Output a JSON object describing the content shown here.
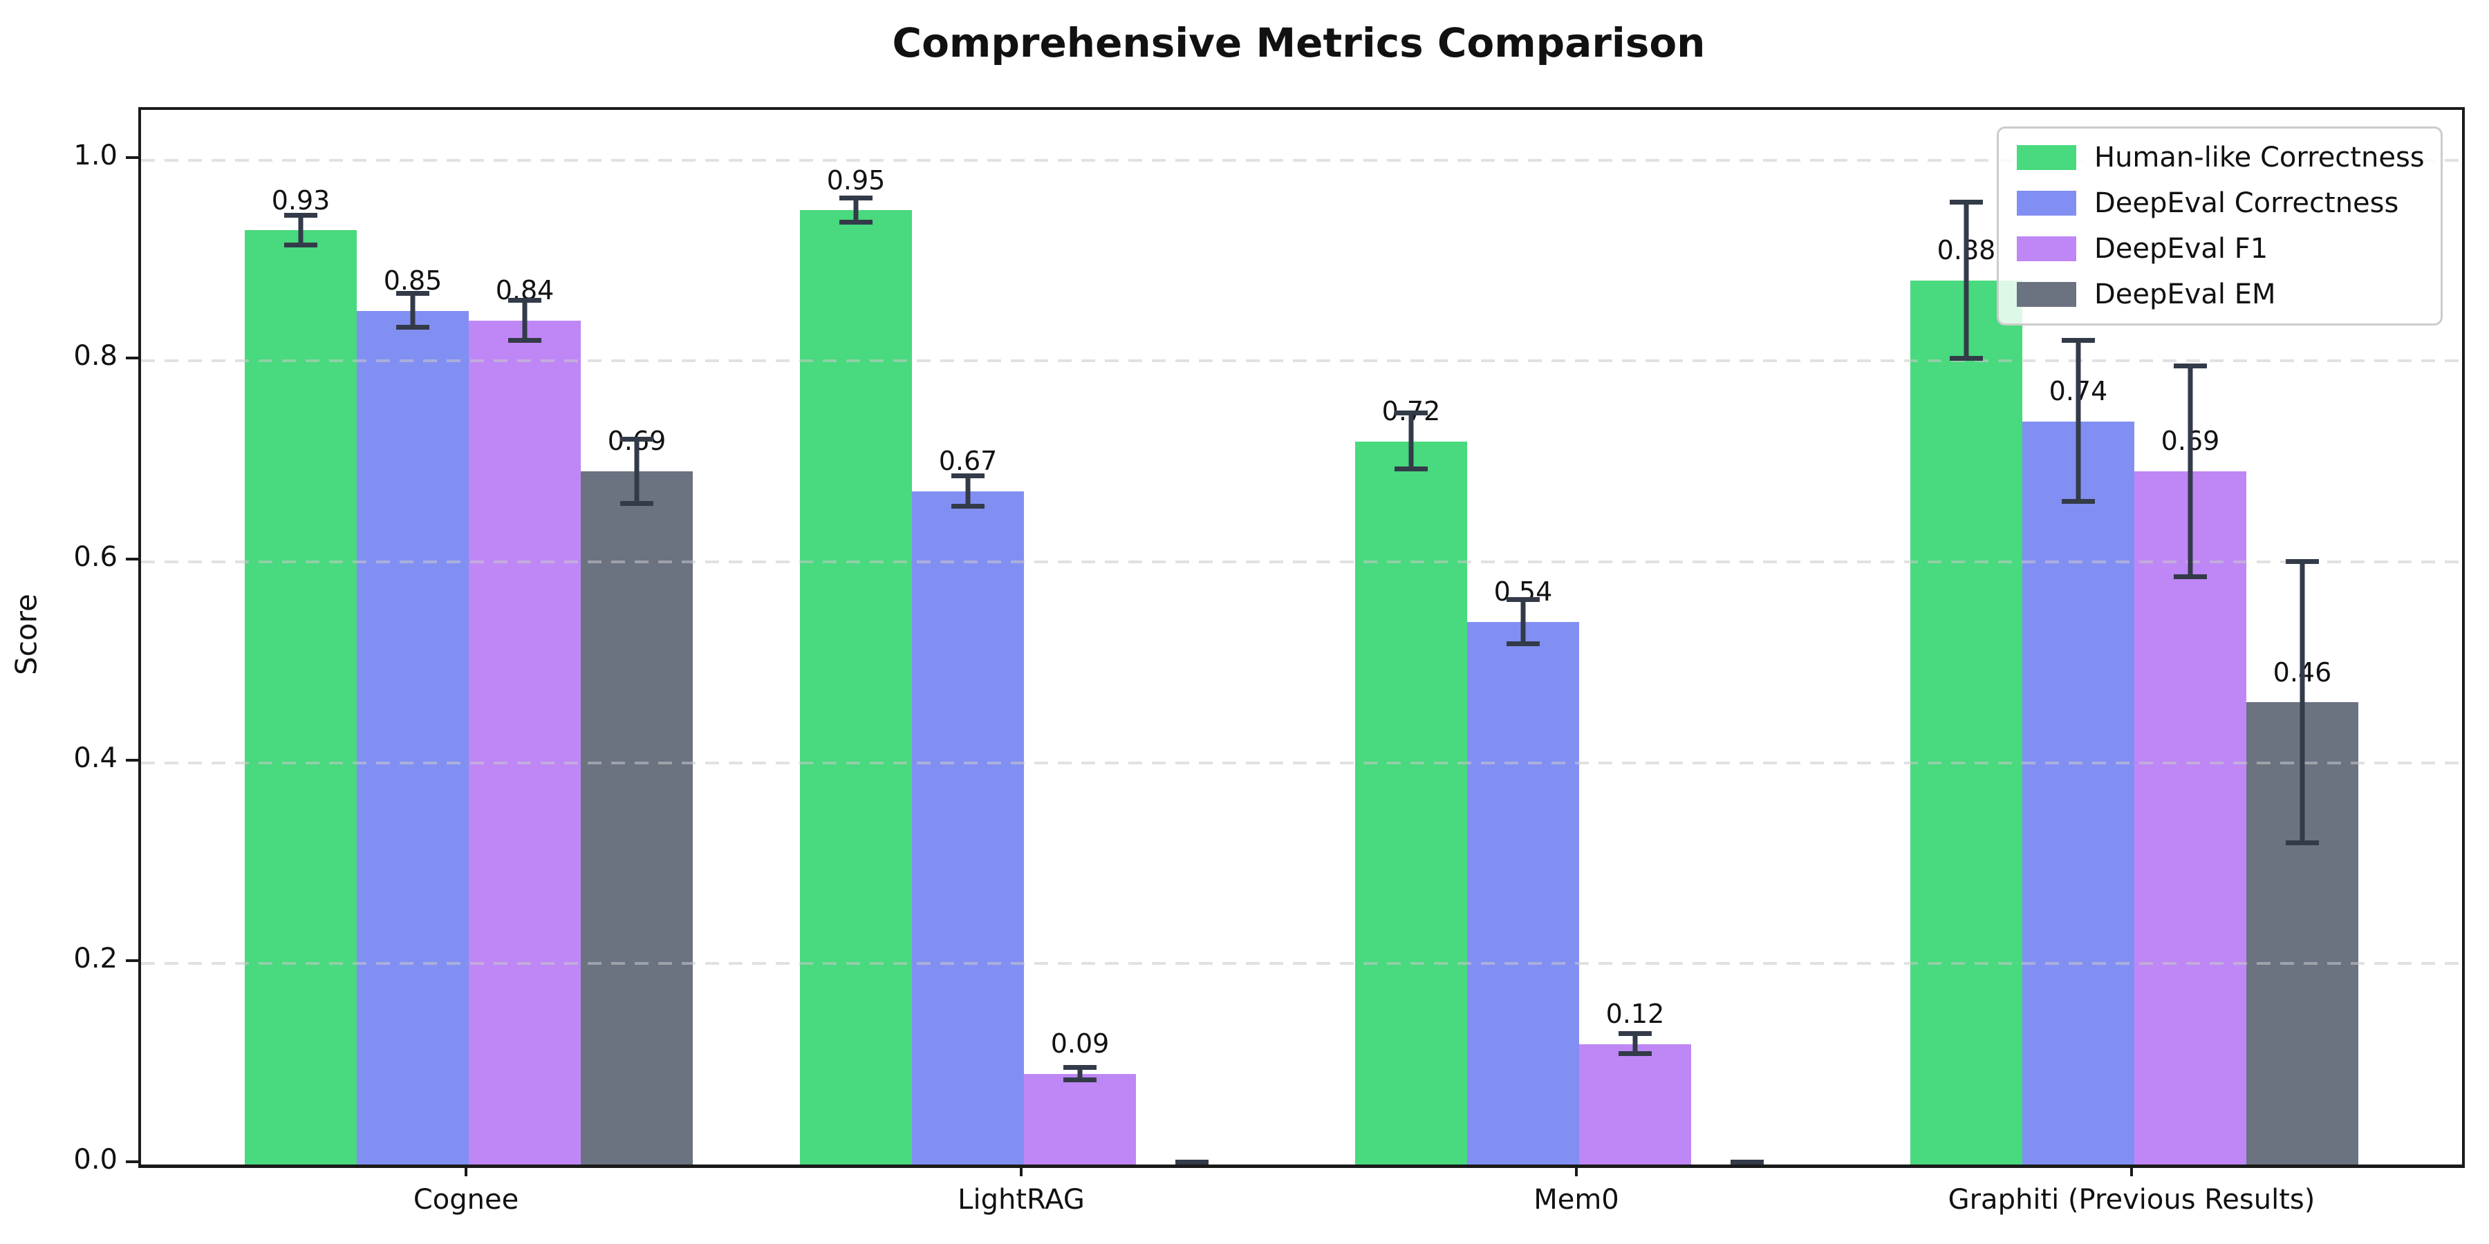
{
  "title": "Comprehensive Metrics Comparison",
  "chart_data": {
    "type": "bar",
    "title": "Comprehensive Metrics Comparison",
    "xlabel": "",
    "ylabel": "Score",
    "ylim": [
      0,
      1.05
    ],
    "yticks": [
      "0.0",
      "0.2",
      "0.4",
      "0.6",
      "0.8",
      "1.0"
    ],
    "grid": "horizontal dashed at y ticks, drawn over bars",
    "legend_position": "upper right",
    "categories": [
      "Cognee",
      "LightRAG",
      "Mem0",
      "Graphiti (Previous Results)"
    ],
    "series": [
      {
        "name": "Human-like Correctness",
        "color": "#49d97e",
        "values": [
          0.93,
          0.95,
          0.72,
          0.88
        ],
        "errors": [
          0.015,
          0.012,
          0.028,
          0.078
        ],
        "labels": [
          "0.93",
          "0.95",
          "0.72",
          "0.88"
        ]
      },
      {
        "name": "DeepEval Correctness",
        "color": "#828ff2",
        "values": [
          0.85,
          0.67,
          0.54,
          0.74
        ],
        "errors": [
          0.017,
          0.015,
          0.022,
          0.08
        ],
        "labels": [
          "0.85",
          "0.67",
          "0.54",
          "0.74"
        ]
      },
      {
        "name": "DeepEval F1",
        "color": "#be87f5",
        "values": [
          0.84,
          0.09,
          0.12,
          0.69
        ],
        "errors": [
          0.02,
          0.006,
          0.01,
          0.105
        ],
        "labels": [
          "0.84",
          "0.09",
          "0.12",
          "0.69"
        ]
      },
      {
        "name": "DeepEval EM",
        "color": "#6b7280",
        "values": [
          0.69,
          0.0,
          0.0,
          0.46
        ],
        "errors": [
          0.032,
          0.002,
          0.002,
          0.14
        ],
        "labels": [
          "0.69",
          "",
          "",
          "0.46"
        ]
      }
    ],
    "error_bar_color": "#333b49",
    "grid_color": "#c9c9c9",
    "axis_color": "#1a1a1a"
  }
}
